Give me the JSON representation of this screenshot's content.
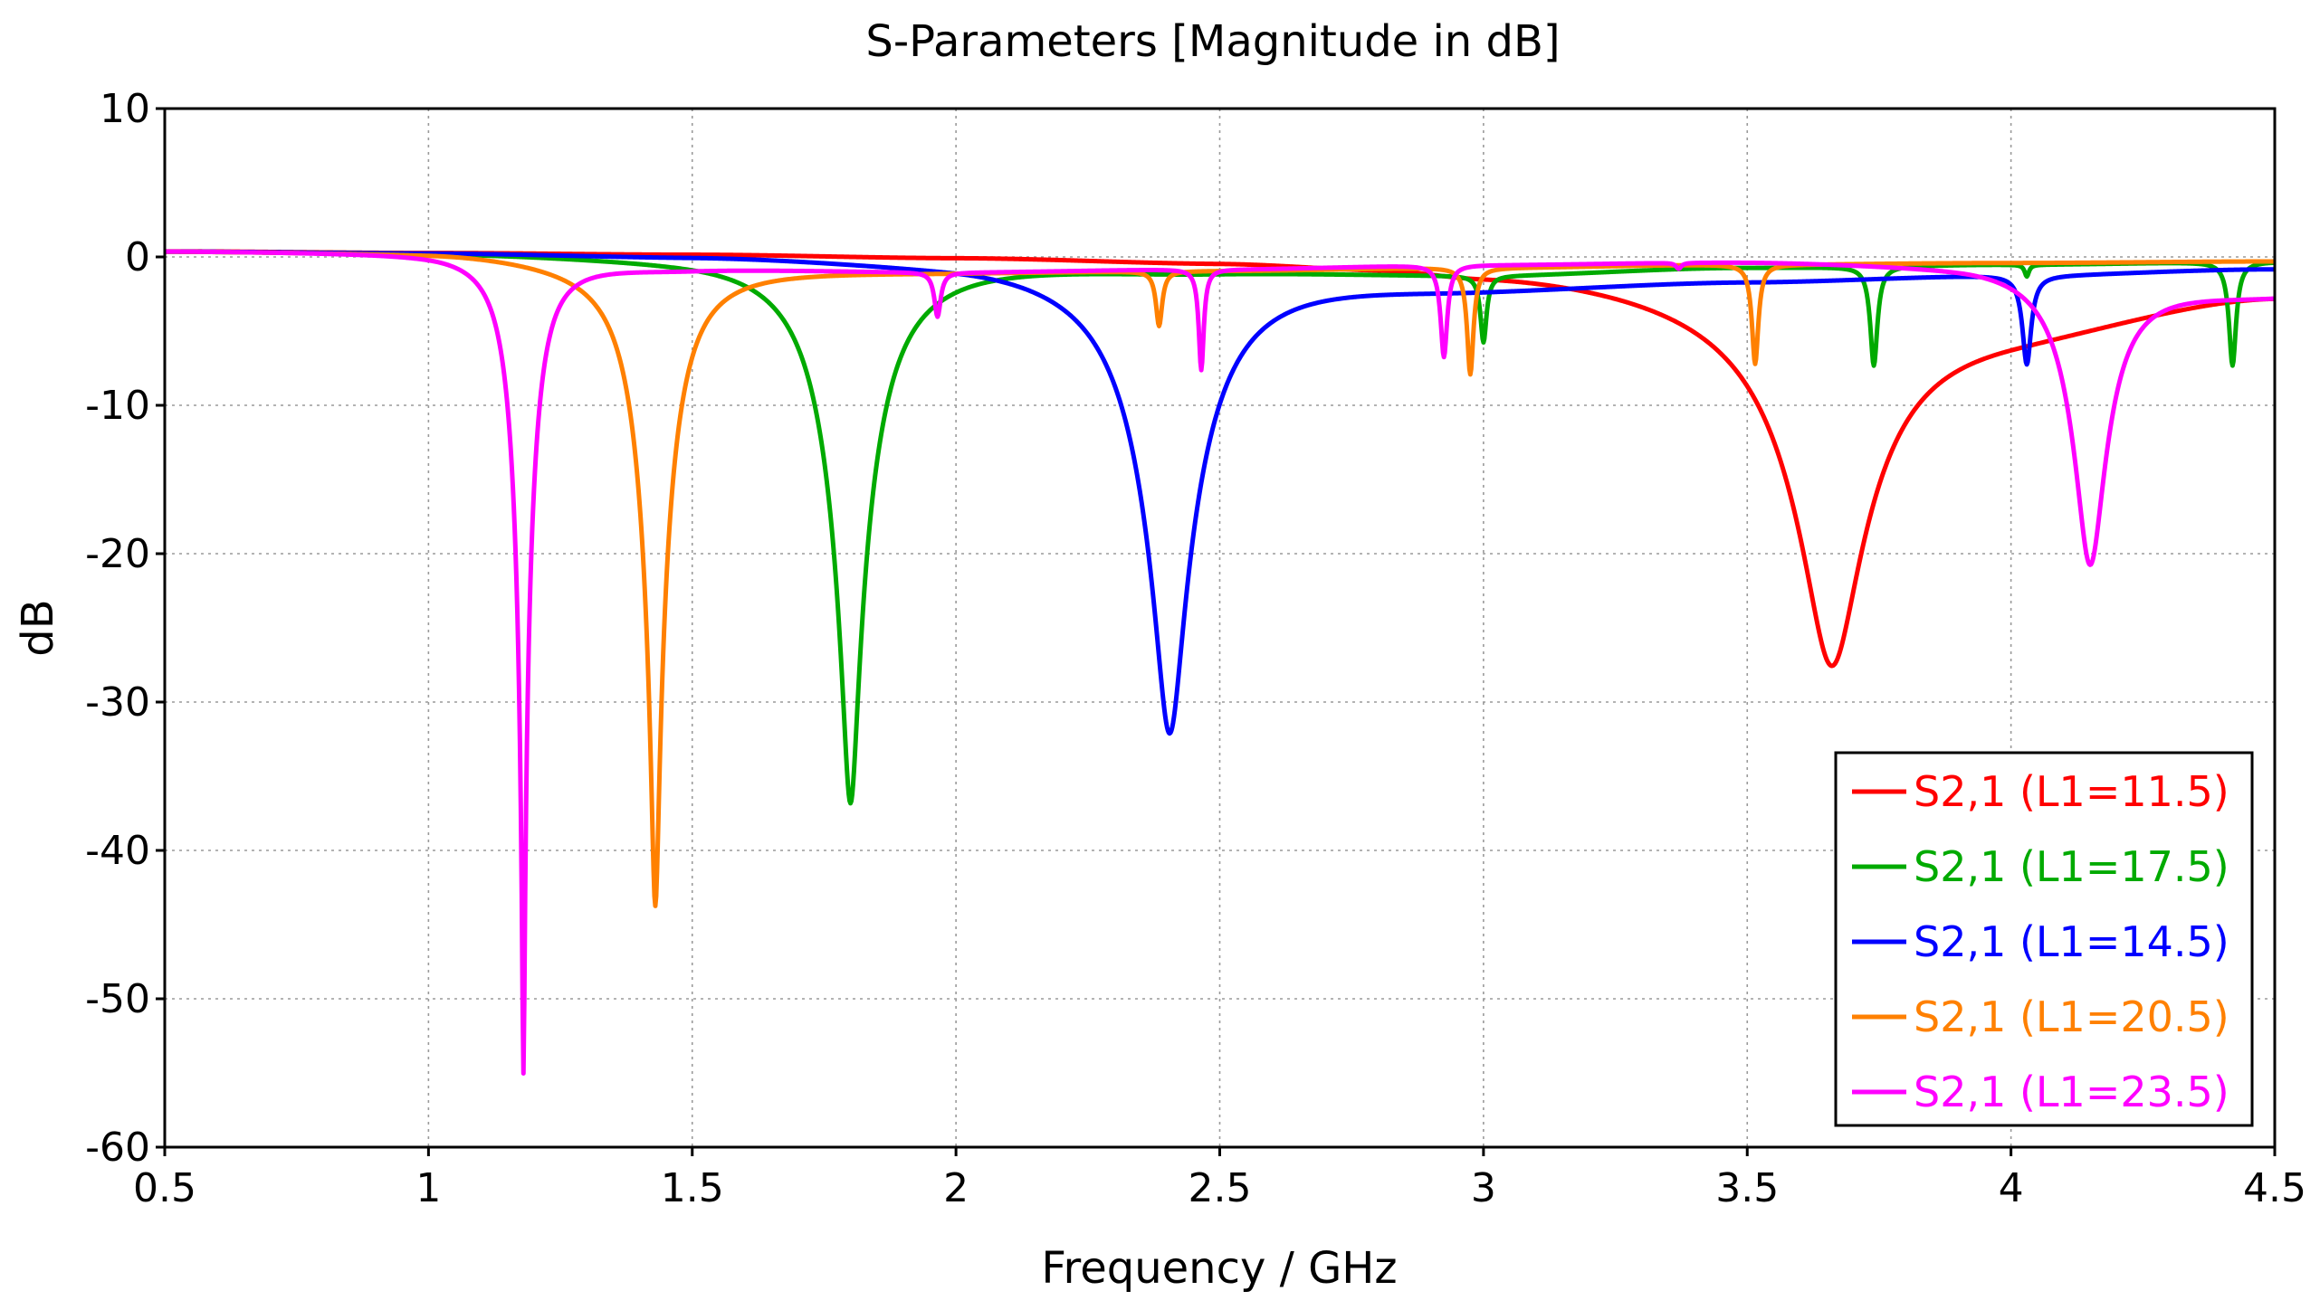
{
  "chart_data": {
    "type": "line",
    "title": "S-Parameters [Magnitude in dB]",
    "xlabel": "Frequency / GHz",
    "ylabel": "dB",
    "xlim": [
      0.5,
      4.5
    ],
    "ylim": [
      -60,
      10
    ],
    "xticks": [
      0.5,
      1,
      1.5,
      2,
      2.5,
      3,
      3.5,
      4,
      4.5
    ],
    "xtick_labels": [
      "0.5",
      "1",
      "1.5",
      "2",
      "2.5",
      "3",
      "3.5",
      "4",
      "4.5"
    ],
    "yticks": [
      10,
      0,
      -10,
      -20,
      -30,
      -40,
      -50,
      -60
    ],
    "ytick_labels": [
      "10",
      "0",
      "-10",
      "-20",
      "-30",
      "-40",
      "-50",
      "-60"
    ],
    "grid": true,
    "legend_position": "bottom-right",
    "series": [
      {
        "name": "S2,1 (L1=11.5)",
        "color": "#ff0000",
        "baseline": [
          [
            0.5,
            0.4
          ],
          [
            1.0,
            0.3
          ],
          [
            1.5,
            0.2
          ],
          [
            2.0,
            0.0
          ],
          [
            2.5,
            -0.3
          ],
          [
            2.8,
            -0.6
          ],
          [
            3.0,
            -1.0
          ],
          [
            4.0,
            -4.5
          ],
          [
            4.5,
            -2.5
          ]
        ],
        "dips": [
          [
            3.66,
            -24.0,
            0.17
          ]
        ]
      },
      {
        "name": "S2,1 (L1=17.5)",
        "color": "#00aa00",
        "baseline": [
          [
            0.5,
            0.4
          ],
          [
            1.0,
            0.3
          ],
          [
            1.5,
            0.0
          ],
          [
            2.0,
            -0.5
          ],
          [
            2.5,
            -1.0
          ],
          [
            3.0,
            -1.2
          ],
          [
            3.5,
            -0.7
          ],
          [
            4.0,
            -0.5
          ],
          [
            4.5,
            -0.3
          ]
        ],
        "dips": [
          [
            1.8,
            -36.5,
            0.1
          ],
          [
            3.0,
            -4.5,
            0.008
          ],
          [
            3.74,
            -6.7,
            0.01
          ],
          [
            4.42,
            -7.0,
            0.01
          ],
          [
            4.03,
            -0.8,
            0.005
          ]
        ]
      },
      {
        "name": "S2,1 (L1=14.5)",
        "color": "#0000ff",
        "baseline": [
          [
            0.5,
            0.4
          ],
          [
            1.0,
            0.3
          ],
          [
            1.5,
            0.1
          ],
          [
            2.0,
            -0.3
          ],
          [
            2.5,
            -1.2
          ],
          [
            3.0,
            -2.0
          ],
          [
            3.5,
            -1.6
          ],
          [
            4.0,
            -1.2
          ],
          [
            4.5,
            -0.8
          ]
        ],
        "dips": [
          [
            2.405,
            -31.0,
            0.13
          ],
          [
            4.03,
            -6.0,
            0.012
          ]
        ]
      },
      {
        "name": "S2,1 (L1=20.5)",
        "color": "#ff8000",
        "baseline": [
          [
            0.5,
            0.4
          ],
          [
            1.0,
            0.3
          ],
          [
            1.5,
            -0.8
          ],
          [
            2.0,
            -1.0
          ],
          [
            2.5,
            -0.9
          ],
          [
            3.0,
            -0.7
          ],
          [
            3.5,
            -0.5
          ],
          [
            4.0,
            -0.4
          ],
          [
            4.5,
            -0.3
          ]
        ],
        "dips": [
          [
            1.43,
            -43.0,
            0.07
          ],
          [
            2.385,
            -3.7,
            0.008
          ],
          [
            2.975,
            -7.2,
            0.009
          ],
          [
            3.515,
            -6.7,
            0.009
          ]
        ]
      },
      {
        "name": "S2,1 (L1=23.5)",
        "color": "#ff00ff",
        "baseline": [
          [
            0.5,
            0.4
          ],
          [
            1.0,
            0.3
          ],
          [
            1.5,
            -0.8
          ],
          [
            2.0,
            -1.0
          ],
          [
            2.5,
            -0.8
          ],
          [
            3.0,
            -0.5
          ],
          [
            3.5,
            -0.3
          ],
          [
            3.9,
            -0.5
          ],
          [
            4.5,
            -2.5
          ]
        ],
        "dips": [
          [
            1.18,
            -55.0,
            0.045
          ],
          [
            1.965,
            -3.0,
            0.008
          ],
          [
            2.465,
            -6.8,
            0.007
          ],
          [
            2.925,
            -6.2,
            0.009
          ],
          [
            4.15,
            -19.5,
            0.07
          ],
          [
            3.37,
            -0.4,
            0.006
          ]
        ]
      }
    ]
  }
}
